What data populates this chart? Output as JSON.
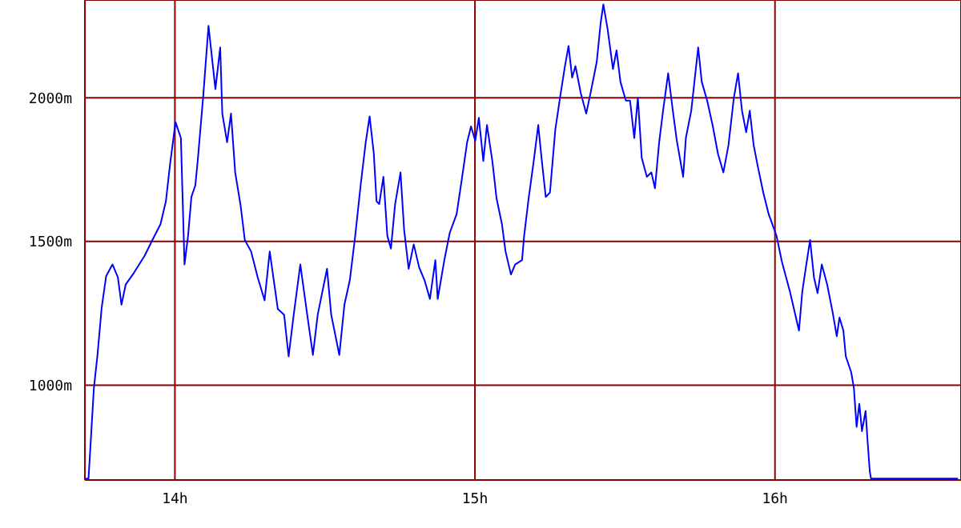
{
  "chart_data": {
    "type": "line",
    "x": [
      13.7,
      13.712,
      13.717,
      13.73,
      13.742,
      13.756,
      13.771,
      13.792,
      13.81,
      13.822,
      13.836,
      13.863,
      13.899,
      13.925,
      13.952,
      13.97,
      13.984,
      14.002,
      14.02,
      14.032,
      14.044,
      14.055,
      14.068,
      14.076,
      14.094,
      14.112,
      14.135,
      14.151,
      14.158,
      14.174,
      14.187,
      14.201,
      14.219,
      14.233,
      14.254,
      14.276,
      14.299,
      14.316,
      14.343,
      14.364,
      14.379,
      14.396,
      14.418,
      14.441,
      14.46,
      14.476,
      14.507,
      14.521,
      14.548,
      14.565,
      14.583,
      14.601,
      14.619,
      14.636,
      14.649,
      14.663,
      14.672,
      14.681,
      14.695,
      14.708,
      14.72,
      14.734,
      14.752,
      14.764,
      14.779,
      14.796,
      14.814,
      14.832,
      14.85,
      14.868,
      14.876,
      14.898,
      14.916,
      14.939,
      14.956,
      14.974,
      14.987,
      15.001,
      15.013,
      15.028,
      15.04,
      15.058,
      15.072,
      15.09,
      15.102,
      15.12,
      15.134,
      15.157,
      15.164,
      15.179,
      15.196,
      15.211,
      15.223,
      15.236,
      15.25,
      15.268,
      15.285,
      15.3,
      15.312,
      15.324,
      15.335,
      15.353,
      15.371,
      15.388,
      15.406,
      15.419,
      15.428,
      15.442,
      15.46,
      15.472,
      15.485,
      15.503,
      15.517,
      15.531,
      15.543,
      15.556,
      15.573,
      15.588,
      15.6,
      15.614,
      15.627,
      15.644,
      15.659,
      15.673,
      15.694,
      15.703,
      15.721,
      15.733,
      15.744,
      15.756,
      15.774,
      15.792,
      15.81,
      15.828,
      15.845,
      15.863,
      15.877,
      15.89,
      15.904,
      15.916,
      15.929,
      15.943,
      15.961,
      15.979,
      16.005,
      16.023,
      16.05,
      16.08,
      16.091,
      16.103,
      16.117,
      16.13,
      16.142,
      16.156,
      16.174,
      16.192,
      16.206,
      16.215,
      16.228,
      16.236,
      16.254,
      16.263,
      16.272,
      16.281,
      16.29,
      16.302,
      16.309,
      16.316,
      16.32,
      16.61
    ],
    "series": [
      {
        "color": "#0000ff",
        "values": [
          675,
          675,
          760,
          990,
          1105,
          1270,
          1380,
          1420,
          1375,
          1280,
          1350,
          1390,
          1450,
          1505,
          1560,
          1640,
          1770,
          1915,
          1860,
          1420,
          1520,
          1655,
          1695,
          1780,
          2000,
          2250,
          2030,
          2175,
          1945,
          1845,
          1945,
          1740,
          1625,
          1505,
          1465,
          1375,
          1295,
          1465,
          1265,
          1245,
          1100,
          1245,
          1420,
          1245,
          1105,
          1245,
          1405,
          1245,
          1105,
          1280,
          1365,
          1520,
          1695,
          1845,
          1935,
          1805,
          1640,
          1630,
          1725,
          1520,
          1475,
          1630,
          1740,
          1540,
          1405,
          1490,
          1410,
          1365,
          1300,
          1435,
          1300,
          1435,
          1530,
          1595,
          1715,
          1845,
          1900,
          1850,
          1930,
          1780,
          1905,
          1780,
          1650,
          1560,
          1465,
          1385,
          1420,
          1435,
          1520,
          1650,
          1780,
          1905,
          1780,
          1655,
          1670,
          1890,
          2010,
          2110,
          2180,
          2070,
          2110,
          2015,
          1945,
          2030,
          2125,
          2260,
          2325,
          2240,
          2100,
          2165,
          2055,
          1990,
          1990,
          1860,
          2000,
          1790,
          1725,
          1740,
          1685,
          1845,
          1955,
          2085,
          1960,
          1850,
          1725,
          1860,
          1955,
          2070,
          2175,
          2055,
          1990,
          1905,
          1805,
          1740,
          1835,
          2000,
          2085,
          1955,
          1880,
          1955,
          1835,
          1760,
          1670,
          1595,
          1520,
          1430,
          1325,
          1190,
          1325,
          1410,
          1505,
          1375,
          1320,
          1420,
          1350,
          1255,
          1170,
          1235,
          1190,
          1100,
          1045,
          990,
          855,
          935,
          840,
          910,
          800,
          700,
          675,
          675
        ]
      }
    ],
    "xlim": [
      13.7,
      16.62
    ],
    "xticks": [
      {
        "value": 14,
        "label": "14h"
      },
      {
        "value": 15,
        "label": "15h"
      },
      {
        "value": 16,
        "label": "16h"
      }
    ],
    "ylim": [
      670,
      2340
    ],
    "yticks": [
      {
        "value": 1000,
        "label": "1000m"
      },
      {
        "value": 1500,
        "label": "1500m"
      },
      {
        "value": 2000,
        "label": "2000m"
      }
    ],
    "grid": true,
    "marker": "none",
    "line_style": "solid"
  }
}
